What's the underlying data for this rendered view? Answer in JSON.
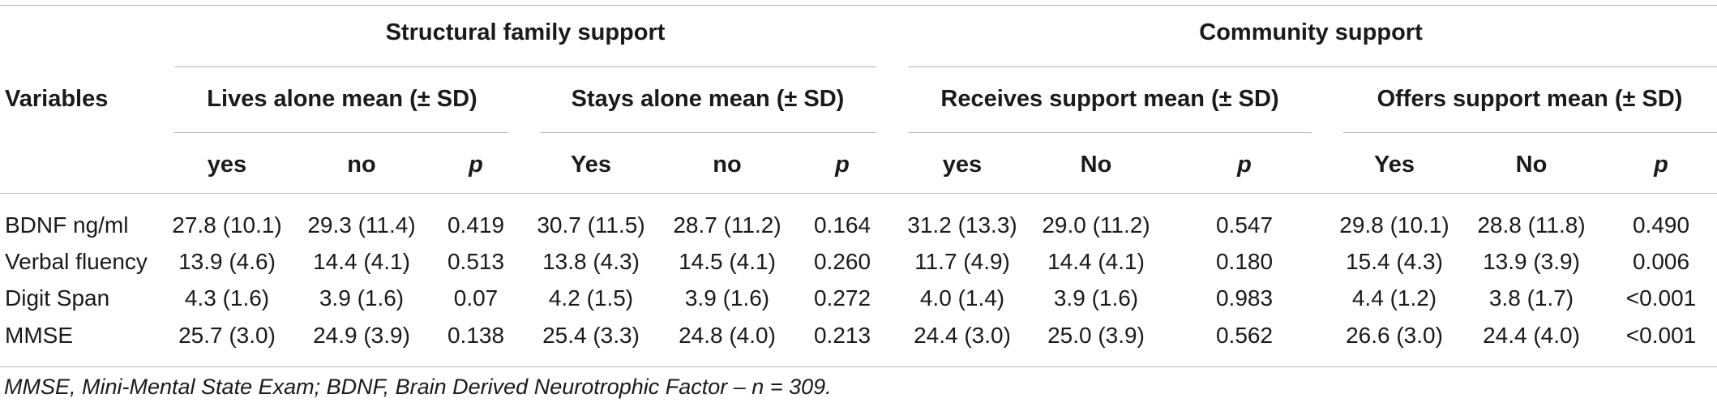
{
  "table": {
    "group_headers": [
      "Structural family support",
      "Community support"
    ],
    "variables_label": "Variables",
    "sub_headers": [
      "Lives alone mean (± SD)",
      "Stays alone mean (± SD)",
      "Receives support mean (± SD)",
      "Offers support mean (± SD)"
    ],
    "col_headers": [
      "yes",
      "no",
      "p",
      "Yes",
      "no",
      "p",
      "yes",
      "No",
      "p",
      "Yes",
      "No",
      "p"
    ],
    "rows": [
      {
        "label": "BDNF ng/ml",
        "cells": [
          "27.8 (10.1)",
          "29.3 (11.4)",
          "0.419",
          "30.7 (11.5)",
          "28.7 (11.2)",
          "0.164",
          "31.2 (13.3)",
          "29.0 (11.2)",
          "0.547",
          "29.8 (10.1)",
          "28.8 (11.8)",
          "0.490"
        ]
      },
      {
        "label": "Verbal fluency",
        "cells": [
          "13.9 (4.6)",
          "14.4 (4.1)",
          "0.513",
          "13.8 (4.3)",
          "14.5 (4.1)",
          "0.260",
          "11.7 (4.9)",
          "14.4 (4.1)",
          "0.180",
          "15.4 (4.3)",
          "13.9 (3.9)",
          "0.006"
        ]
      },
      {
        "label": "Digit Span",
        "cells": [
          "4.3 (1.6)",
          "3.9 (1.6)",
          "0.07",
          "4.2 (1.5)",
          "3.9 (1.6)",
          "0.272",
          "4.0 (1.4)",
          "3.9 (1.6)",
          "0.983",
          "4.4 (1.2)",
          "3.8 (1.7)",
          "<0.001"
        ]
      },
      {
        "label": "MMSE",
        "cells": [
          "25.7 (3.0)",
          "24.9 (3.9)",
          "0.138",
          "25.4 (3.3)",
          "24.8 (4.0)",
          "0.213",
          "24.4 (3.0)",
          "25.0 (3.9)",
          "0.562",
          "26.6 (3.0)",
          "24.4 (4.0)",
          "<0.001"
        ]
      }
    ],
    "footnote": "MMSE, Mini-Mental State Exam; BDNF, Brain Derived Neurotrophic Factor – n = 309."
  }
}
